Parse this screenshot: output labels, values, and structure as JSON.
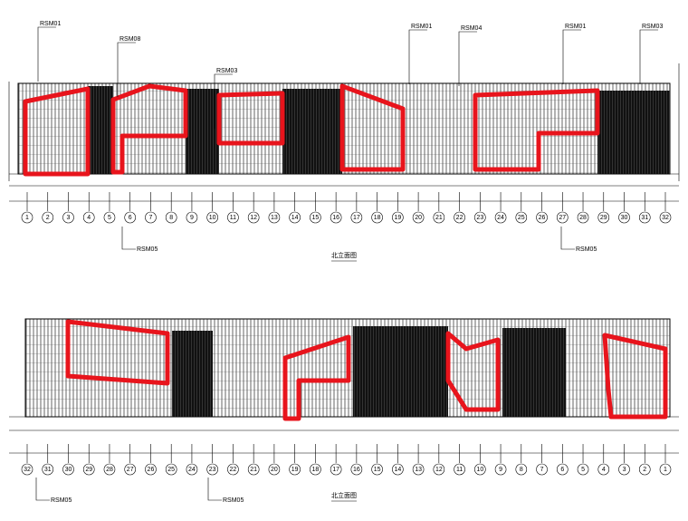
{
  "top_elevation": {
    "tags": [
      "RSM01",
      "RSM08",
      "RSM03",
      "RSM01",
      "RSM04",
      "RSM01",
      "RSM03"
    ],
    "lower_tags": [
      "RSM05",
      "RSM05"
    ],
    "axis_labels": [
      "1",
      "2",
      "3",
      "4",
      "5",
      "6",
      "7",
      "8",
      "9",
      "10",
      "11",
      "12",
      "13",
      "14",
      "15",
      "16",
      "17",
      "18",
      "19",
      "20",
      "21",
      "22",
      "23",
      "24",
      "25",
      "26",
      "27",
      "28",
      "29",
      "30",
      "31",
      "32"
    ],
    "title": "北立面图"
  },
  "bottom_elevation": {
    "lower_tags": [
      "RSM05",
      "RSM05"
    ],
    "axis_labels": [
      "32",
      "31",
      "30",
      "29",
      "28",
      "27",
      "26",
      "25",
      "24",
      "23",
      "22",
      "21",
      "20",
      "19",
      "18",
      "17",
      "16",
      "15",
      "14",
      "13",
      "12",
      "11",
      "10",
      "9",
      "8",
      "7",
      "6",
      "5",
      "4",
      "3",
      "2",
      "1"
    ],
    "title": "北立面图"
  }
}
